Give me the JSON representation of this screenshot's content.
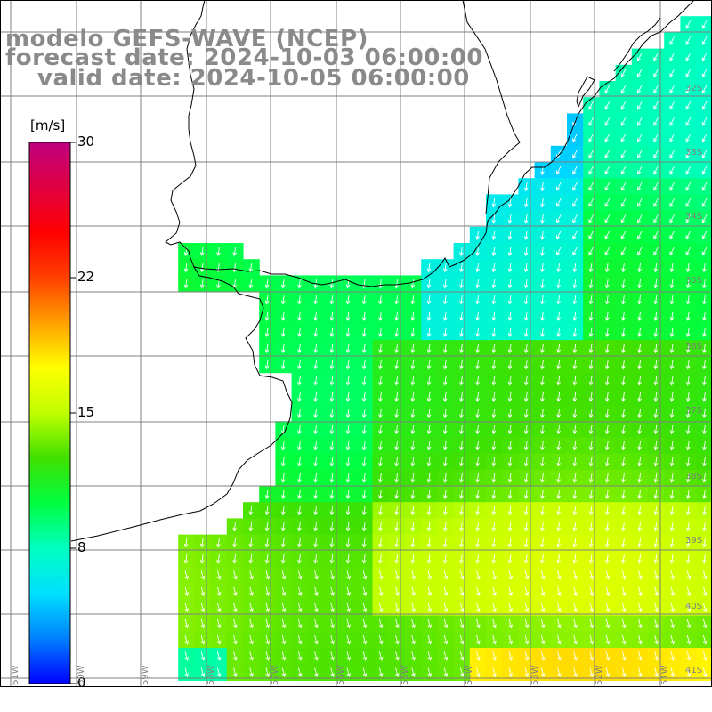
{
  "title": {
    "line1": "modelo GEFS-WAVE (NCEP)",
    "line2": "forecast date: 2024-10-03 06:00:00",
    "line3": "valid date: 2024-10-05 06:00:00"
  },
  "colorbar": {
    "unit": "[m/s]",
    "ticks": [
      "30",
      "22",
      "15",
      "8",
      "0"
    ],
    "tick_values": [
      30,
      22,
      15,
      8,
      0
    ],
    "range": [
      0,
      30
    ],
    "colors": [
      "#0000ff",
      "#0080ff",
      "#00e0ff",
      "#00ffc0",
      "#00ff40",
      "#40e000",
      "#c0ff00",
      "#ffff00",
      "#ffa000",
      "#ff4000",
      "#ff0000",
      "#e00040",
      "#c00080"
    ]
  },
  "lat_labels": [
    "32S",
    "33S",
    "34S",
    "35S",
    "36S",
    "37S",
    "38S",
    "39S",
    "40S",
    "41S"
  ],
  "lon_labels": [
    "61W",
    "60W",
    "59W",
    "58W",
    "57W",
    "56W",
    "55W",
    "54W",
    "53W",
    "52W",
    "51W"
  ],
  "colors": {
    "land": "#ffffff",
    "coast": "#000000",
    "grid": "#7f7f7f",
    "arrow": "#ffffff",
    "title": "#8a8a8a"
  }
}
